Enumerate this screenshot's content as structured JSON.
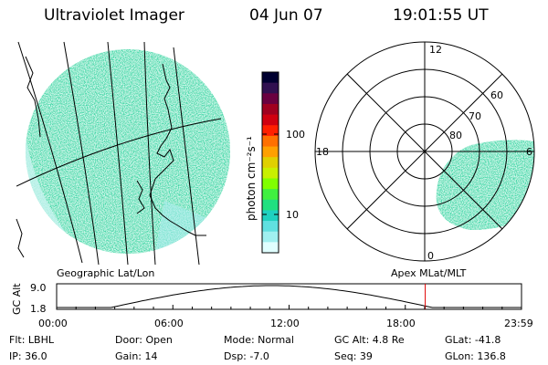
{
  "header": {
    "instrument": "Ultraviolet Imager",
    "date": "04 Jun 07",
    "time": "19:01:55 UT"
  },
  "colorbar": {
    "unit_label": "photon cm⁻²s⁻¹",
    "tick_labels": [
      "100",
      "10"
    ],
    "colors": [
      "#000030",
      "#301050",
      "#6a0040",
      "#a00020",
      "#d00010",
      "#ff2000",
      "#ff7000",
      "#ffa000",
      "#e0d000",
      "#c8f000",
      "#80ff00",
      "#40f040",
      "#20e080",
      "#20d0c0",
      "#60e0e0",
      "#a0f0f0",
      "#e0ffff"
    ]
  },
  "left_panel": {
    "label": "Geographic Lat/Lon",
    "image_color": "#3ad8a8"
  },
  "right_panel": {
    "label": "Apex MLat/MLT",
    "mlt_labels": [
      "12",
      "18",
      "6",
      "0"
    ],
    "mlat_labels": [
      "60",
      "70",
      "80"
    ]
  },
  "orbit": {
    "axis_label": "GC Alt",
    "y_ticks": [
      "9.0",
      "1.8"
    ],
    "x_ticks": [
      "00:00",
      "06:00",
      "12:00",
      "18:00",
      "23:59"
    ],
    "current_marker_hours": 19.03
  },
  "info": {
    "flt": "Flt: LBHL",
    "ip": "IP: 36.0",
    "door": "Door: Open",
    "gain": "Gain: 14",
    "mode": "Mode: Normal",
    "dsp": "Dsp:    -7.0",
    "gcalt": "GC Alt: 4.8 Re",
    "seq": "Seq: 39",
    "glat": "GLat: -41.8",
    "glon": "GLon: 136.8"
  }
}
